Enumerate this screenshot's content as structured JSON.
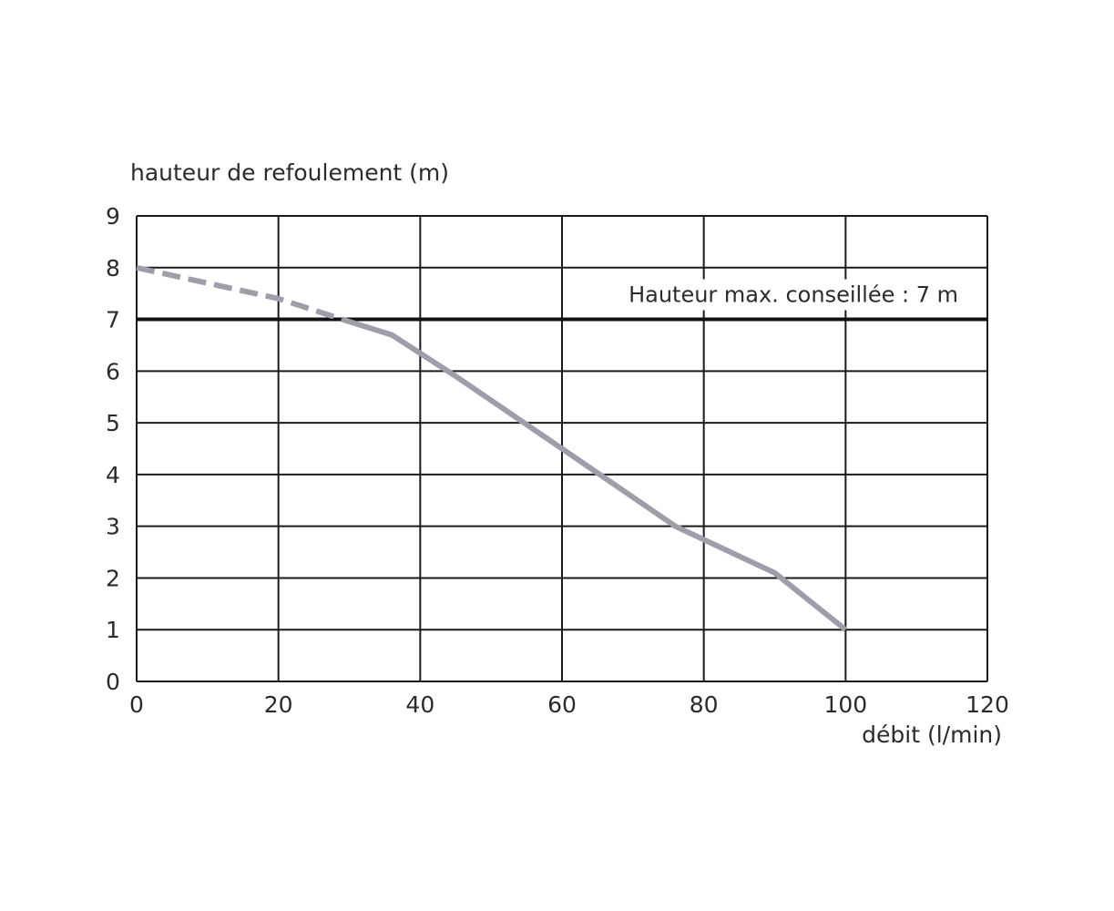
{
  "chart_data": {
    "type": "line",
    "ylabel": "hauteur de refoulement (m)",
    "xlabel": "débit (l/min)",
    "xlim": [
      0,
      120
    ],
    "ylim": [
      0,
      9
    ],
    "x_ticks": [
      "0",
      "20",
      "40",
      "60",
      "80",
      "100",
      "120"
    ],
    "y_ticks": [
      "0",
      "1",
      "2",
      "3",
      "4",
      "5",
      "6",
      "7",
      "8",
      "9"
    ],
    "grid": true,
    "series": [
      {
        "segment": "above-recommended",
        "style": "dashed",
        "color": "#9e9eab",
        "points": [
          [
            0,
            8.0
          ],
          [
            10,
            7.7
          ],
          [
            20,
            7.4
          ],
          [
            29,
            7.0
          ]
        ]
      },
      {
        "segment": "recommended",
        "style": "solid",
        "color": "#9e9eab",
        "points": [
          [
            29,
            7.0
          ],
          [
            36,
            6.7
          ],
          [
            45,
            5.9
          ],
          [
            60,
            4.5
          ],
          [
            76,
            3.0
          ],
          [
            90,
            2.1
          ],
          [
            100,
            1.0
          ]
        ]
      }
    ],
    "reference_line": {
      "y": 7,
      "color": "#111111",
      "label": "Hauteur max. conseillée : 7 m"
    }
  }
}
